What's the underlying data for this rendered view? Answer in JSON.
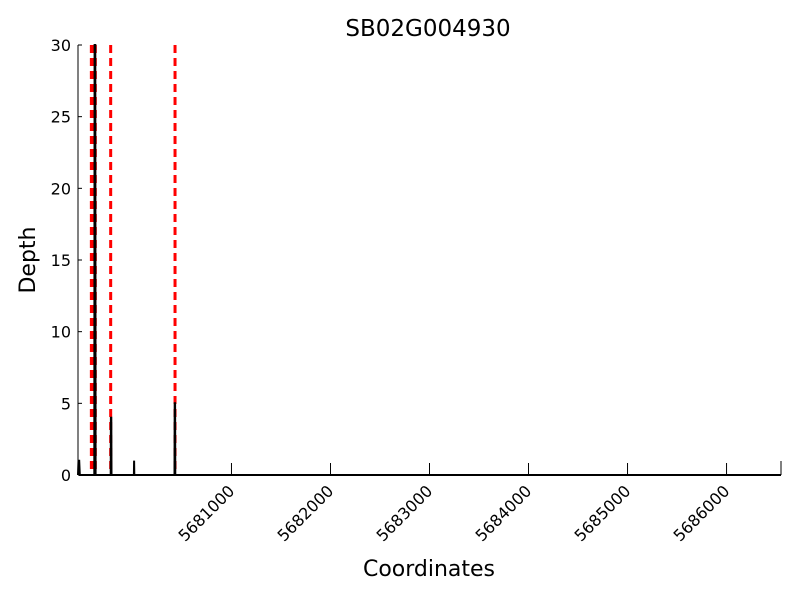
{
  "chart_data": {
    "type": "line",
    "title": "SB02G004930",
    "xlabel": "Coordinates",
    "ylabel": "Depth",
    "xlim": [
      5679450,
      5686550
    ],
    "ylim": [
      0,
      30
    ],
    "x_ticks": [
      5681000,
      5682000,
      5683000,
      5684000,
      5685000,
      5686000
    ],
    "y_ticks": [
      0,
      5,
      10,
      15,
      20,
      25,
      30
    ],
    "grid": false,
    "legend": "none",
    "colors": {
      "depth": "#000000",
      "marker": "#ff0000"
    },
    "series": [
      {
        "values": [
          {
            "x": 5679450,
            "y": 0
          },
          {
            "x": 5679455,
            "y": 1
          },
          {
            "x": 5679462,
            "y": 1
          },
          {
            "x": 5679468,
            "y": 0
          },
          {
            "x": 5679615,
            "y": 0
          },
          {
            "x": 5679618,
            "y": 30
          },
          {
            "x": 5679625,
            "y": 30
          },
          {
            "x": 5679628,
            "y": 0
          },
          {
            "x": 5679780,
            "y": 0
          },
          {
            "x": 5679782,
            "y": 4
          },
          {
            "x": 5679786,
            "y": 4
          },
          {
            "x": 5679788,
            "y": 0
          },
          {
            "x": 5680015,
            "y": 0
          },
          {
            "x": 5680017,
            "y": 1
          },
          {
            "x": 5680019,
            "y": 0
          },
          {
            "x": 5680425,
            "y": 0
          },
          {
            "x": 5680427,
            "y": 5
          },
          {
            "x": 5680431,
            "y": 5
          },
          {
            "x": 5680433,
            "y": 0
          },
          {
            "x": 5686550,
            "y": 0
          }
        ]
      }
    ],
    "vlines": [
      5679585,
      5679605,
      5679625,
      5679780,
      5680430
    ]
  }
}
